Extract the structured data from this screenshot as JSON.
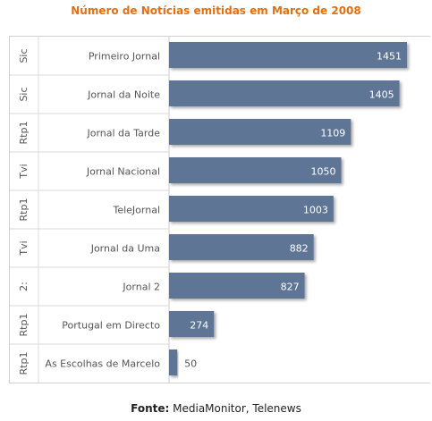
{
  "chart_data": {
    "type": "bar",
    "orientation": "horizontal",
    "title": "Número de Notícias emitidas em Março de 2008",
    "groups": [
      "Sic",
      "Sic",
      "Rtp1",
      "Tvi",
      "Rtp1",
      "Tvi",
      "2:",
      "Rtp1",
      "Rtp1"
    ],
    "categories": [
      "Primeiro Jornal",
      "Jornal da Noite",
      "Jornal da Tarde",
      "Jornal Nacional",
      "TeleJornal",
      "Jornal da Uma",
      "Jornal 2",
      "Portugal em Directo",
      "As Escolhas de Marcelo"
    ],
    "values": [
      1451,
      1405,
      1109,
      1050,
      1003,
      882,
      827,
      274,
      50
    ],
    "xlim": [
      0,
      1500
    ],
    "bar_color": "#5e7596",
    "label_color_inside": "#ffffff",
    "label_color_outside": "#555555"
  },
  "source": {
    "label": "Fonte:",
    "text": "MediaMonitor, Telenews"
  }
}
